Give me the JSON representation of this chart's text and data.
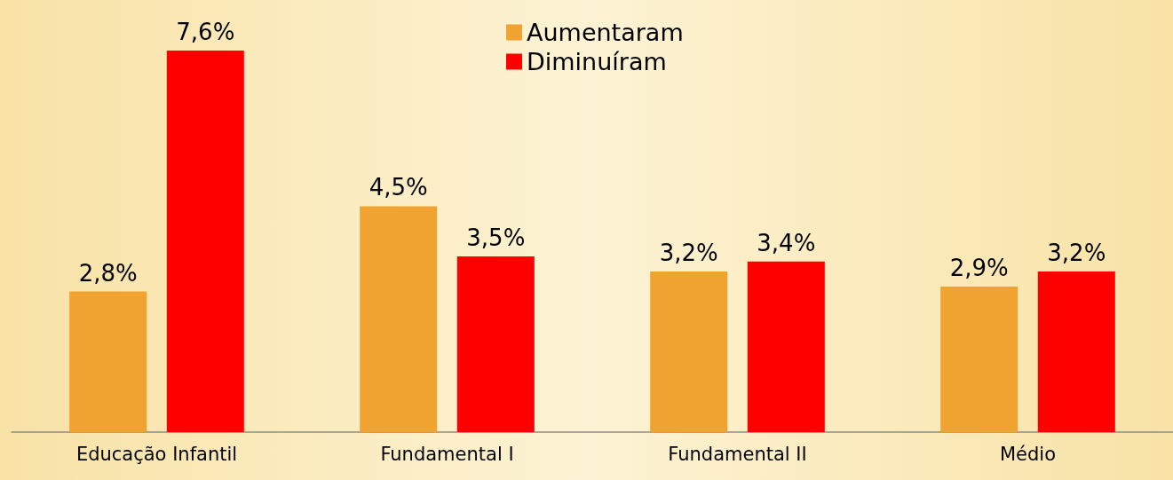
{
  "chart_data": {
    "type": "bar",
    "categories": [
      "Educação Infantil",
      "Fundamental I",
      "Fundamental II",
      "Médio"
    ],
    "series": [
      {
        "name": "Aumentaram",
        "color": "#f0a330",
        "values": [
          2.8,
          4.5,
          3.2,
          2.9
        ],
        "value_labels": [
          "2,8%",
          "4,5%",
          "3,2%",
          "2,9%"
        ]
      },
      {
        "name": "Diminuíram",
        "color": "#ff0000",
        "values": [
          7.6,
          3.5,
          3.4,
          3.2
        ],
        "value_labels": [
          "7,6%",
          "3,5%",
          "3,4%",
          "3,2%"
        ]
      }
    ],
    "ylim": [
      0,
      7.6
    ],
    "legend": "top"
  }
}
